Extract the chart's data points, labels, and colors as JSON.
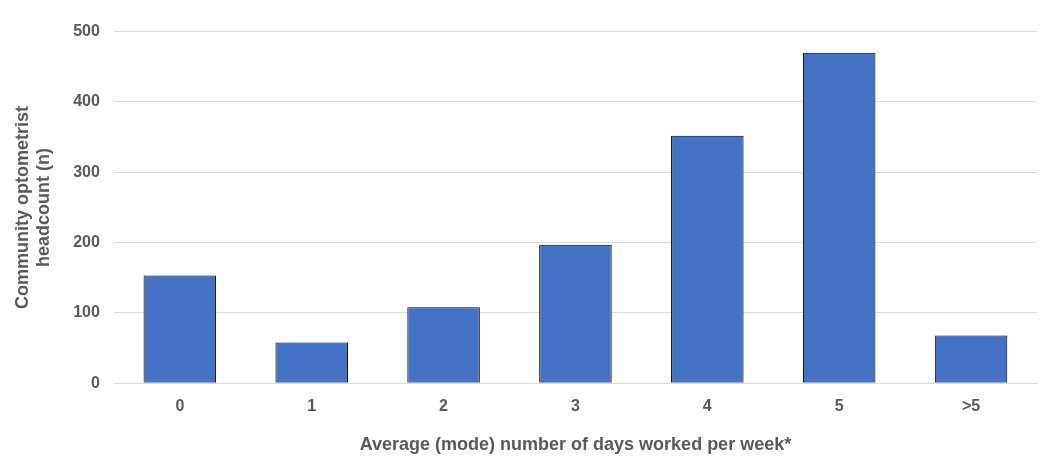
{
  "chart_data": {
    "type": "bar",
    "xlabel": "Average (mode) number of days worked per week*",
    "ylabel": "Community optometrist headcount (n)",
    "categories": [
      "0",
      "1",
      "2",
      "3",
      "4",
      "5",
      ">5"
    ],
    "values": [
      153,
      58,
      108,
      197,
      352,
      470,
      68
    ],
    "color": "#4472c4",
    "ylim": [
      0,
      500
    ],
    "yticks": [
      0,
      100,
      200,
      300,
      400,
      500
    ],
    "grid": "y",
    "legend": false
  }
}
